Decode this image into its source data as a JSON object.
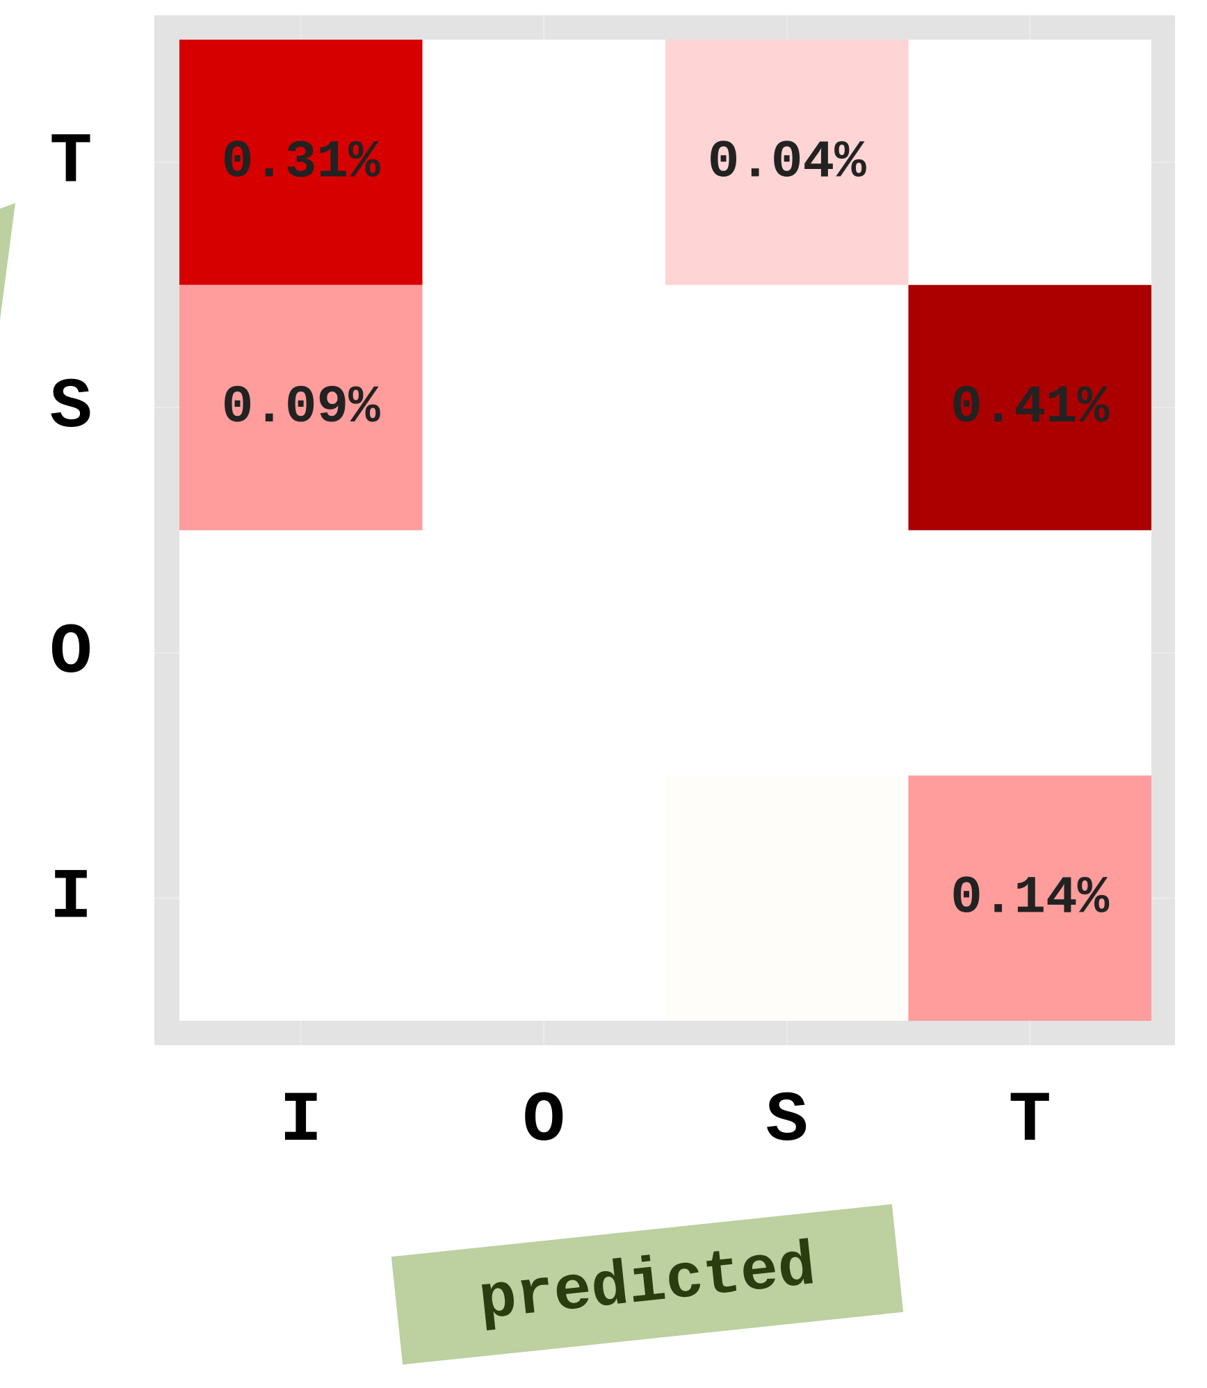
{
  "chart_data": {
    "type": "heatmap",
    "xlabel": "predicted",
    "x_categories": [
      "I",
      "O",
      "S",
      "T"
    ],
    "y_categories": [
      "T",
      "S",
      "O",
      "I"
    ],
    "values": [
      [
        0.31,
        null,
        0.04,
        null
      ],
      [
        0.09,
        null,
        null,
        0.41
      ],
      [
        null,
        null,
        null,
        null
      ],
      [
        null,
        null,
        0.002,
        0.14
      ]
    ],
    "value_labels": [
      [
        "0.31%",
        null,
        "0.04%",
        null
      ],
      [
        "0.09%",
        null,
        null,
        "0.41%"
      ],
      [
        null,
        null,
        null,
        null
      ],
      [
        null,
        null,
        null,
        "0.14%"
      ]
    ],
    "colors": [
      [
        "#d60000",
        null,
        "#ffd4d4",
        null
      ],
      [
        "#ff9c9c",
        null,
        null,
        "#aa0000"
      ],
      [
        null,
        null,
        null,
        null
      ],
      [
        null,
        null,
        "#fffdf9",
        "#ff9c9c"
      ]
    ]
  }
}
